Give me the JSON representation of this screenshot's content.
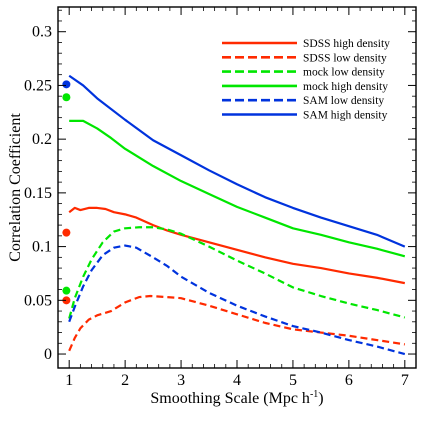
{
  "chart_data": {
    "type": "line",
    "xlabel": "Smoothing Scale (Mpc h",
    "xlabel_sup": "-1",
    "xlabel_close": ")",
    "ylabel": "Correlation Coefficient",
    "xlim": [
      0.8,
      7.2
    ],
    "ylim": [
      -0.013,
      0.323
    ],
    "xticks": [
      1,
      2,
      3,
      4,
      5,
      6,
      7
    ],
    "xtick_labels": [
      "1",
      "2",
      "3",
      "4",
      "5",
      "6",
      "7"
    ],
    "yticks": [
      0,
      0.05,
      0.1,
      0.15,
      0.2,
      0.25,
      0.3
    ],
    "ytick_labels": [
      "0",
      "0.05",
      "0.1",
      "0.15",
      "0.2",
      "0.25",
      "0.3"
    ],
    "grid": false,
    "legend_position": "top-right",
    "series": [
      {
        "name": "SDSS high density",
        "color": "#ff2a00",
        "dash": "solid",
        "x": [
          1.0,
          1.1,
          1.2,
          1.35,
          1.5,
          1.65,
          1.8,
          2.0,
          2.2,
          2.5,
          2.75,
          3.0,
          3.5,
          4.0,
          4.5,
          5.0,
          5.5,
          6.0,
          6.5,
          7.0
        ],
        "y": [
          0.132,
          0.136,
          0.134,
          0.136,
          0.136,
          0.135,
          0.132,
          0.13,
          0.127,
          0.12,
          0.115,
          0.111,
          0.104,
          0.097,
          0.09,
          0.084,
          0.08,
          0.075,
          0.071,
          0.066
        ]
      },
      {
        "name": "SDSS low density",
        "color": "#ff2a00",
        "dash": "dashed",
        "x": [
          1.0,
          1.1,
          1.2,
          1.35,
          1.5,
          1.75,
          2.0,
          2.25,
          2.45,
          2.75,
          3.0,
          3.5,
          4.0,
          4.5,
          5.0,
          5.5,
          6.0,
          6.5,
          7.0
        ],
        "y": [
          0.003,
          0.015,
          0.024,
          0.032,
          0.036,
          0.04,
          0.048,
          0.053,
          0.054,
          0.053,
          0.052,
          0.045,
          0.037,
          0.029,
          0.023,
          0.02,
          0.017,
          0.013,
          0.009
        ]
      },
      {
        "name": "mock low density",
        "color": "#00e600",
        "dash": "dashed",
        "x": [
          1.0,
          1.1,
          1.25,
          1.4,
          1.6,
          1.8,
          2.0,
          2.25,
          2.5,
          2.75,
          3.0,
          3.5,
          4.0,
          4.5,
          5.0,
          5.5,
          6.0,
          6.5,
          7.0
        ],
        "y": [
          0.033,
          0.052,
          0.072,
          0.088,
          0.104,
          0.114,
          0.117,
          0.118,
          0.118,
          0.116,
          0.112,
          0.1,
          0.087,
          0.075,
          0.062,
          0.054,
          0.047,
          0.041,
          0.034
        ]
      },
      {
        "name": "mock high density",
        "color": "#00e600",
        "dash": "solid",
        "x": [
          1.0,
          1.1,
          1.25,
          1.5,
          1.75,
          2.0,
          2.5,
          3.0,
          3.5,
          4.0,
          4.5,
          5.0,
          5.5,
          6.0,
          6.5,
          7.0
        ],
        "y": [
          0.217,
          0.217,
          0.217,
          0.21,
          0.201,
          0.191,
          0.175,
          0.161,
          0.149,
          0.137,
          0.127,
          0.117,
          0.111,
          0.104,
          0.098,
          0.091
        ]
      },
      {
        "name": "SAM low density",
        "color": "#0033dd",
        "dash": "dashed",
        "x": [
          1.0,
          1.1,
          1.25,
          1.4,
          1.6,
          1.8,
          2.0,
          2.2,
          2.5,
          2.75,
          3.0,
          3.5,
          4.0,
          4.5,
          5.0,
          5.5,
          6.0,
          6.5,
          7.0
        ],
        "y": [
          0.03,
          0.044,
          0.063,
          0.078,
          0.092,
          0.099,
          0.101,
          0.099,
          0.09,
          0.082,
          0.072,
          0.057,
          0.045,
          0.035,
          0.026,
          0.02,
          0.013,
          0.007,
          0.0
        ]
      },
      {
        "name": "SAM high density",
        "color": "#0033dd",
        "dash": "solid",
        "x": [
          1.0,
          1.25,
          1.5,
          2.0,
          2.5,
          3.0,
          3.5,
          4.0,
          4.5,
          5.0,
          5.5,
          6.0,
          6.5,
          7.0
        ],
        "y": [
          0.259,
          0.25,
          0.238,
          0.218,
          0.199,
          0.185,
          0.171,
          0.158,
          0.146,
          0.136,
          0.127,
          0.119,
          0.111,
          0.1
        ]
      }
    ],
    "points": [
      {
        "x": 0.95,
        "y": 0.251,
        "color": "#0033dd"
      },
      {
        "x": 0.95,
        "y": 0.239,
        "color": "#00e600"
      },
      {
        "x": 0.95,
        "y": 0.113,
        "color": "#ff2a00"
      },
      {
        "x": 0.95,
        "y": 0.059,
        "color": "#00e600"
      },
      {
        "x": 0.95,
        "y": 0.05,
        "color": "#ff2a00"
      }
    ]
  }
}
